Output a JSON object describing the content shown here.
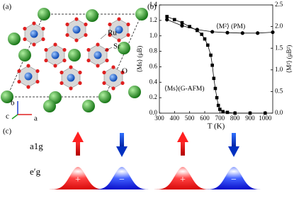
{
  "panel_a": {
    "label": "(a)",
    "atoms": [
      "Ru",
      "Sr",
      "O"
    ],
    "axes": [
      "b",
      "c",
      "a"
    ]
  },
  "chart_data": {
    "type": "line",
    "label": "(b)",
    "xlabel": "T (K)",
    "ylabel": "⟨Ms⟩ (μB)",
    "y2label": "⟨M²⟩ (μB²)",
    "xlim": [
      300,
      1050
    ],
    "xticks": [
      300,
      400,
      500,
      600,
      700,
      800,
      900,
      1000
    ],
    "ylim": [
      0,
      1.4
    ],
    "yticks": [
      {
        "value": 0,
        "label": "0.0"
      },
      {
        "value": 0.2,
        "label": "0.2"
      },
      {
        "value": 0.4,
        "label": "0.4"
      },
      {
        "value": 0.6,
        "label": "0.6"
      },
      {
        "value": 0.8,
        "label": "0.8"
      },
      {
        "value": 1,
        "label": "1.0"
      },
      {
        "value": 1.2,
        "label": "1.2"
      },
      {
        "value": 1.4,
        "label": "1.4"
      }
    ],
    "y2lim": [
      0,
      2.5
    ],
    "y2ticks": [
      {
        "value": 0,
        "label": "0.0"
      },
      0.5,
      {
        "value": 1,
        "label": "1.0"
      },
      1.5,
      {
        "value": 2,
        "label": "2.0"
      },
      2.5
    ],
    "series": [
      {
        "name": "⟨Ms⟩(G-AFM)",
        "marker": "square",
        "color": "#000000",
        "x": [
          350,
          400,
          450,
          500,
          550,
          580,
          600,
          620,
          640,
          650,
          660,
          670,
          680,
          690,
          700,
          720,
          750,
          800,
          900,
          1000
        ],
        "values": [
          1.25,
          1.21,
          1.17,
          1.12,
          1.07,
          1.02,
          0.96,
          0.88,
          0.75,
          0.62,
          0.45,
          0.32,
          0.2,
          0.1,
          0.05,
          0.02,
          0.01,
          0,
          0,
          0
        ]
      },
      {
        "name": "⟨M²⟩ (PM)",
        "marker": "circle",
        "color": "#000000",
        "axis": "y2",
        "x": [
          350,
          450,
          550,
          650,
          750,
          850,
          950,
          1050
        ],
        "values": [
          2.16,
          2.02,
          1.93,
          1.88,
          1.86,
          1.85,
          1.85,
          1.87
        ]
      }
    ]
  },
  "panel_c": {
    "label": "(c)",
    "rows": [
      "a1g",
      "e′g"
    ],
    "signs": [
      "+",
      "−",
      "+",
      "−"
    ]
  }
}
